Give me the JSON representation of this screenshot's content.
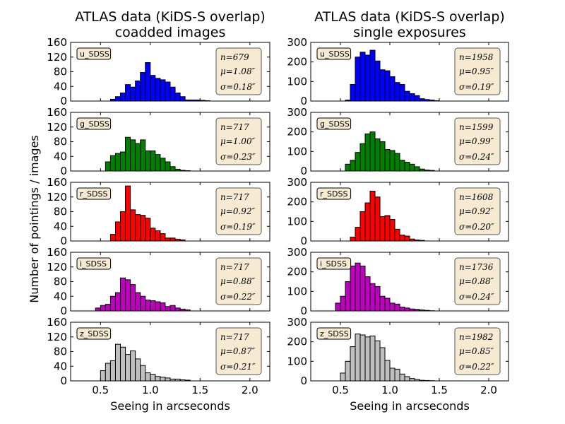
{
  "figure": {
    "ylabel": "Number of pointings / images"
  },
  "colors": {
    "u": "#0000ff",
    "g": "#008000",
    "r": "#ff0000",
    "i": "#bf00bf",
    "z": "#bfbfbf",
    "statbox_fill": "#f6ebd2",
    "statbox_edge": "#555555"
  },
  "chart_data": [
    {
      "type": "bar",
      "column": "coadded",
      "title": "ATLAS data (KiDS-S overlap)\ncoadded images",
      "xlabel": "Seeing in arcseconds",
      "xlim": [
        0.2,
        2.2
      ],
      "xticks": [
        0.5,
        1.0,
        1.5,
        2.0
      ],
      "xtick_labels": [
        "0.5",
        "1.0",
        "1.5",
        "2.0"
      ],
      "bin_width": 0.05,
      "panels": [
        {
          "band": "u_SDSS",
          "color_key": "u",
          "ylim": [
            0,
            160
          ],
          "yticks": [
            0,
            40,
            80,
            120,
            160
          ],
          "bin_start": 0.6,
          "values": [
            5,
            12,
            22,
            45,
            38,
            55,
            78,
            105,
            70,
            62,
            58,
            52,
            38,
            22,
            12,
            3,
            3,
            3,
            2,
            1
          ],
          "stats": {
            "n": "n=679",
            "mu": "μ=1.08″",
            "sigma": "σ=0.18″"
          }
        },
        {
          "band": "g_SDSS",
          "color_key": "g",
          "ylim": [
            0,
            160
          ],
          "yticks": [
            0,
            40,
            80,
            120,
            160
          ],
          "bin_start": 0.55,
          "values": [
            25,
            42,
            48,
            52,
            92,
            85,
            75,
            85,
            55,
            55,
            45,
            35,
            25,
            12,
            5,
            2,
            1
          ],
          "stats": {
            "n": "n=717",
            "mu": "μ=1.00″",
            "sigma": "σ=0.23″"
          }
        },
        {
          "band": "r_SDSS",
          "color_key": "r",
          "ylim": [
            0,
            160
          ],
          "yticks": [
            0,
            40,
            80,
            120,
            160
          ],
          "bin_start": 0.6,
          "values": [
            18,
            52,
            80,
            150,
            85,
            72,
            70,
            62,
            35,
            28,
            20,
            8,
            8,
            5,
            3
          ],
          "stats": {
            "n": "n=717",
            "mu": "μ=0.92″",
            "sigma": "σ=0.19″"
          }
        },
        {
          "band": "i_SDSS",
          "color_key": "i",
          "ylim": [
            0,
            160
          ],
          "yticks": [
            0,
            40,
            80,
            120,
            160
          ],
          "bin_start": 0.45,
          "values": [
            8,
            15,
            18,
            40,
            50,
            90,
            85,
            72,
            50,
            40,
            30,
            28,
            25,
            22,
            12,
            15,
            8,
            5,
            3
          ],
          "stats": {
            "n": "n=717",
            "mu": "μ=0.88″",
            "sigma": "σ=0.22″"
          }
        },
        {
          "band": "z_SDSS",
          "color_key": "z",
          "ylim": [
            0,
            160
          ],
          "yticks": [
            0,
            40,
            80,
            120,
            160
          ],
          "bin_start": 0.5,
          "values": [
            28,
            48,
            55,
            100,
            92,
            72,
            82,
            60,
            42,
            22,
            18,
            12,
            10,
            8,
            5,
            5,
            3,
            2
          ],
          "stats": {
            "n": "n=717",
            "mu": "μ=0.87″",
            "sigma": "σ=0.21″"
          }
        }
      ]
    },
    {
      "type": "bar",
      "column": "single",
      "title": "ATLAS data (KiDS-S overlap)\nsingle exposures",
      "xlabel": "Seeing in arcseconds",
      "xlim": [
        0.2,
        2.2
      ],
      "xticks": [
        0.5,
        1.0,
        1.5,
        2.0
      ],
      "xtick_labels": [
        "0.5",
        "1.0",
        "1.5",
        "2.0"
      ],
      "bin_width": 0.05,
      "panels": [
        {
          "band": "u_SDSS",
          "color_key": "u",
          "ylim": [
            0,
            300
          ],
          "yticks": [
            0,
            100,
            200,
            300
          ],
          "bin_start": 0.55,
          "values": [
            5,
            85,
            225,
            250,
            235,
            260,
            205,
            160,
            155,
            125,
            95,
            85,
            50,
            38,
            28,
            12,
            8,
            5,
            2
          ],
          "stats": {
            "n": "n=1958",
            "mu": "μ=0.95″",
            "sigma": "σ=0.19″"
          }
        },
        {
          "band": "g_SDSS",
          "color_key": "g",
          "ylim": [
            0,
            300
          ],
          "yticks": [
            0,
            100,
            200,
            300
          ],
          "bin_start": 0.55,
          "values": [
            35,
            55,
            95,
            140,
            190,
            200,
            165,
            150,
            110,
            105,
            90,
            55,
            45,
            35,
            22,
            10,
            5,
            3
          ],
          "stats": {
            "n": "n=1599",
            "mu": "μ=0.99″",
            "sigma": "σ=0.24″"
          }
        },
        {
          "band": "r_SDSS",
          "color_key": "r",
          "ylim": [
            0,
            300
          ],
          "yticks": [
            0,
            100,
            200,
            300
          ],
          "bin_start": 0.6,
          "values": [
            20,
            70,
            150,
            195,
            255,
            225,
            125,
            130,
            110,
            60,
            30,
            25,
            10,
            5,
            3
          ],
          "stats": {
            "n": "n=1608",
            "mu": "μ=0.92″",
            "sigma": "σ=0.20″"
          }
        },
        {
          "band": "i_SDSS",
          "color_key": "i",
          "ylim": [
            0,
            300
          ],
          "yticks": [
            0,
            100,
            200,
            300
          ],
          "bin_start": 0.45,
          "values": [
            40,
            75,
            150,
            230,
            245,
            230,
            175,
            140,
            125,
            75,
            65,
            40,
            35,
            20,
            15,
            10,
            8,
            5,
            3,
            1
          ],
          "stats": {
            "n": "n=1736",
            "mu": "μ=0.88″",
            "sigma": "σ=0.24″"
          }
        },
        {
          "band": "z_SDSS",
          "color_key": "z",
          "ylim": [
            0,
            300
          ],
          "yticks": [
            0,
            100,
            200,
            300
          ],
          "bin_start": 0.5,
          "values": [
            40,
            100,
            175,
            240,
            235,
            225,
            230,
            205,
            170,
            105,
            65,
            60,
            35,
            22,
            12,
            8,
            3,
            2,
            1
          ],
          "stats": {
            "n": "n=1982",
            "mu": "μ=0.85″",
            "sigma": "σ=0.22″"
          }
        }
      ]
    }
  ]
}
